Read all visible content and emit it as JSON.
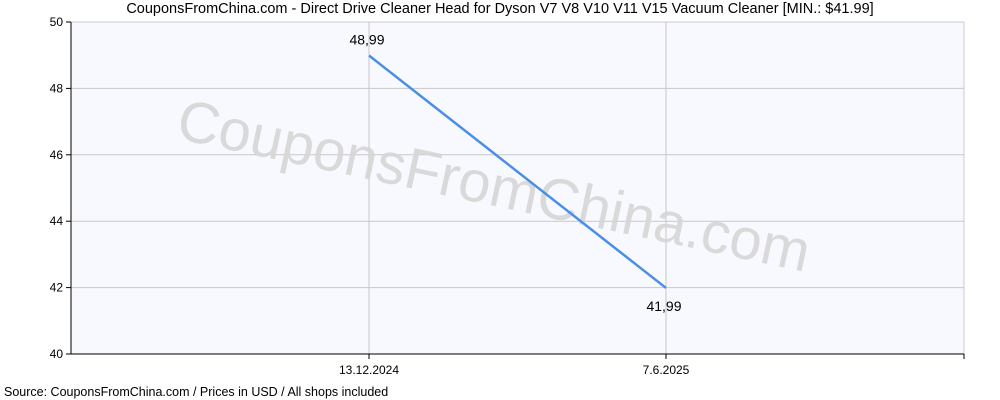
{
  "header": {
    "title": "CouponsFromChina.com - Direct Drive Cleaner Head for Dyson V7 V8 V10 V11 V15 Vacuum Cleaner [MIN.: $41.99]"
  },
  "footer": {
    "source": "Source: CouponsFromChina.com / Prices in USD / All shops included"
  },
  "watermark": "CouponsFromChina.com",
  "colors": {
    "line": "#4a8fe6",
    "plot_bg": "#f8f8ff",
    "grid": "#c8c8c8"
  },
  "chart_data": {
    "type": "line",
    "title": "CouponsFromChina.com - Direct Drive Cleaner Head for Dyson V7 V8 V10 V11 V15 Vacuum Cleaner [MIN.: $41.99]",
    "xlabel": "",
    "ylabel": "",
    "ylim": [
      40,
      50
    ],
    "yticks": [
      "40",
      "42",
      "44",
      "46",
      "48",
      "50"
    ],
    "categories": [
      "13.12.2024",
      "7.6.2025"
    ],
    "values": [
      48.99,
      41.99
    ],
    "data_labels": [
      "48,99",
      "41,99"
    ],
    "grid": true,
    "legend": "none"
  }
}
